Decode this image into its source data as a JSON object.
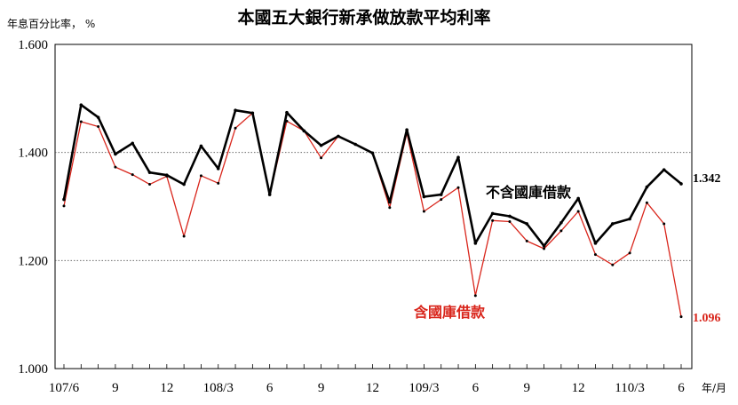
{
  "chart_data": {
    "type": "line",
    "title": "本國五大銀行新承做放款平均利率",
    "ylabel": "年息百分比率， %",
    "xlabel": "年/月",
    "ylim": [
      1.0,
      1.6
    ],
    "yticks": [
      "1.000",
      "1.200",
      "1.400",
      "1.600"
    ],
    "ytick_values": [
      1.0,
      1.2,
      1.4,
      1.6
    ],
    "grid": "horizontal-dotted",
    "x_tick_labels": [
      {
        "index": 0,
        "label": "107/6"
      },
      {
        "index": 3,
        "label": "9"
      },
      {
        "index": 6,
        "label": "12"
      },
      {
        "index": 9,
        "label": "108/3"
      },
      {
        "index": 12,
        "label": "6"
      },
      {
        "index": 15,
        "label": "9"
      },
      {
        "index": 18,
        "label": "12"
      },
      {
        "index": 21,
        "label": "109/3"
      },
      {
        "index": 24,
        "label": "6"
      },
      {
        "index": 27,
        "label": "9"
      },
      {
        "index": 30,
        "label": "12"
      },
      {
        "index": 33,
        "label": "110/3"
      },
      {
        "index": 36,
        "label": "6"
      }
    ],
    "series": [
      {
        "name": "不含國庫借款",
        "color": "#000000",
        "end_label": "1.342",
        "values": [
          1.313,
          1.488,
          1.465,
          1.397,
          1.417,
          1.363,
          1.358,
          1.341,
          1.412,
          1.37,
          1.478,
          1.473,
          1.322,
          1.474,
          1.44,
          1.413,
          1.43,
          1.415,
          1.399,
          1.308,
          1.442,
          1.318,
          1.322,
          1.391,
          1.232,
          1.287,
          1.282,
          1.268,
          1.227,
          1.27,
          1.315,
          1.232,
          1.268,
          1.277,
          1.336,
          1.368,
          1.342
        ]
      },
      {
        "name": "含國庫借款",
        "color": "#d9261c",
        "end_label": "1.096",
        "values": [
          1.301,
          1.457,
          1.448,
          1.373,
          1.359,
          1.341,
          1.356,
          1.245,
          1.357,
          1.343,
          1.445,
          1.473,
          1.322,
          1.458,
          1.44,
          1.39,
          1.43,
          1.415,
          1.399,
          1.298,
          1.436,
          1.291,
          1.313,
          1.335,
          1.135,
          1.274,
          1.272,
          1.236,
          1.222,
          1.255,
          1.291,
          1.211,
          1.192,
          1.214,
          1.307,
          1.268,
          1.096
        ]
      }
    ]
  }
}
